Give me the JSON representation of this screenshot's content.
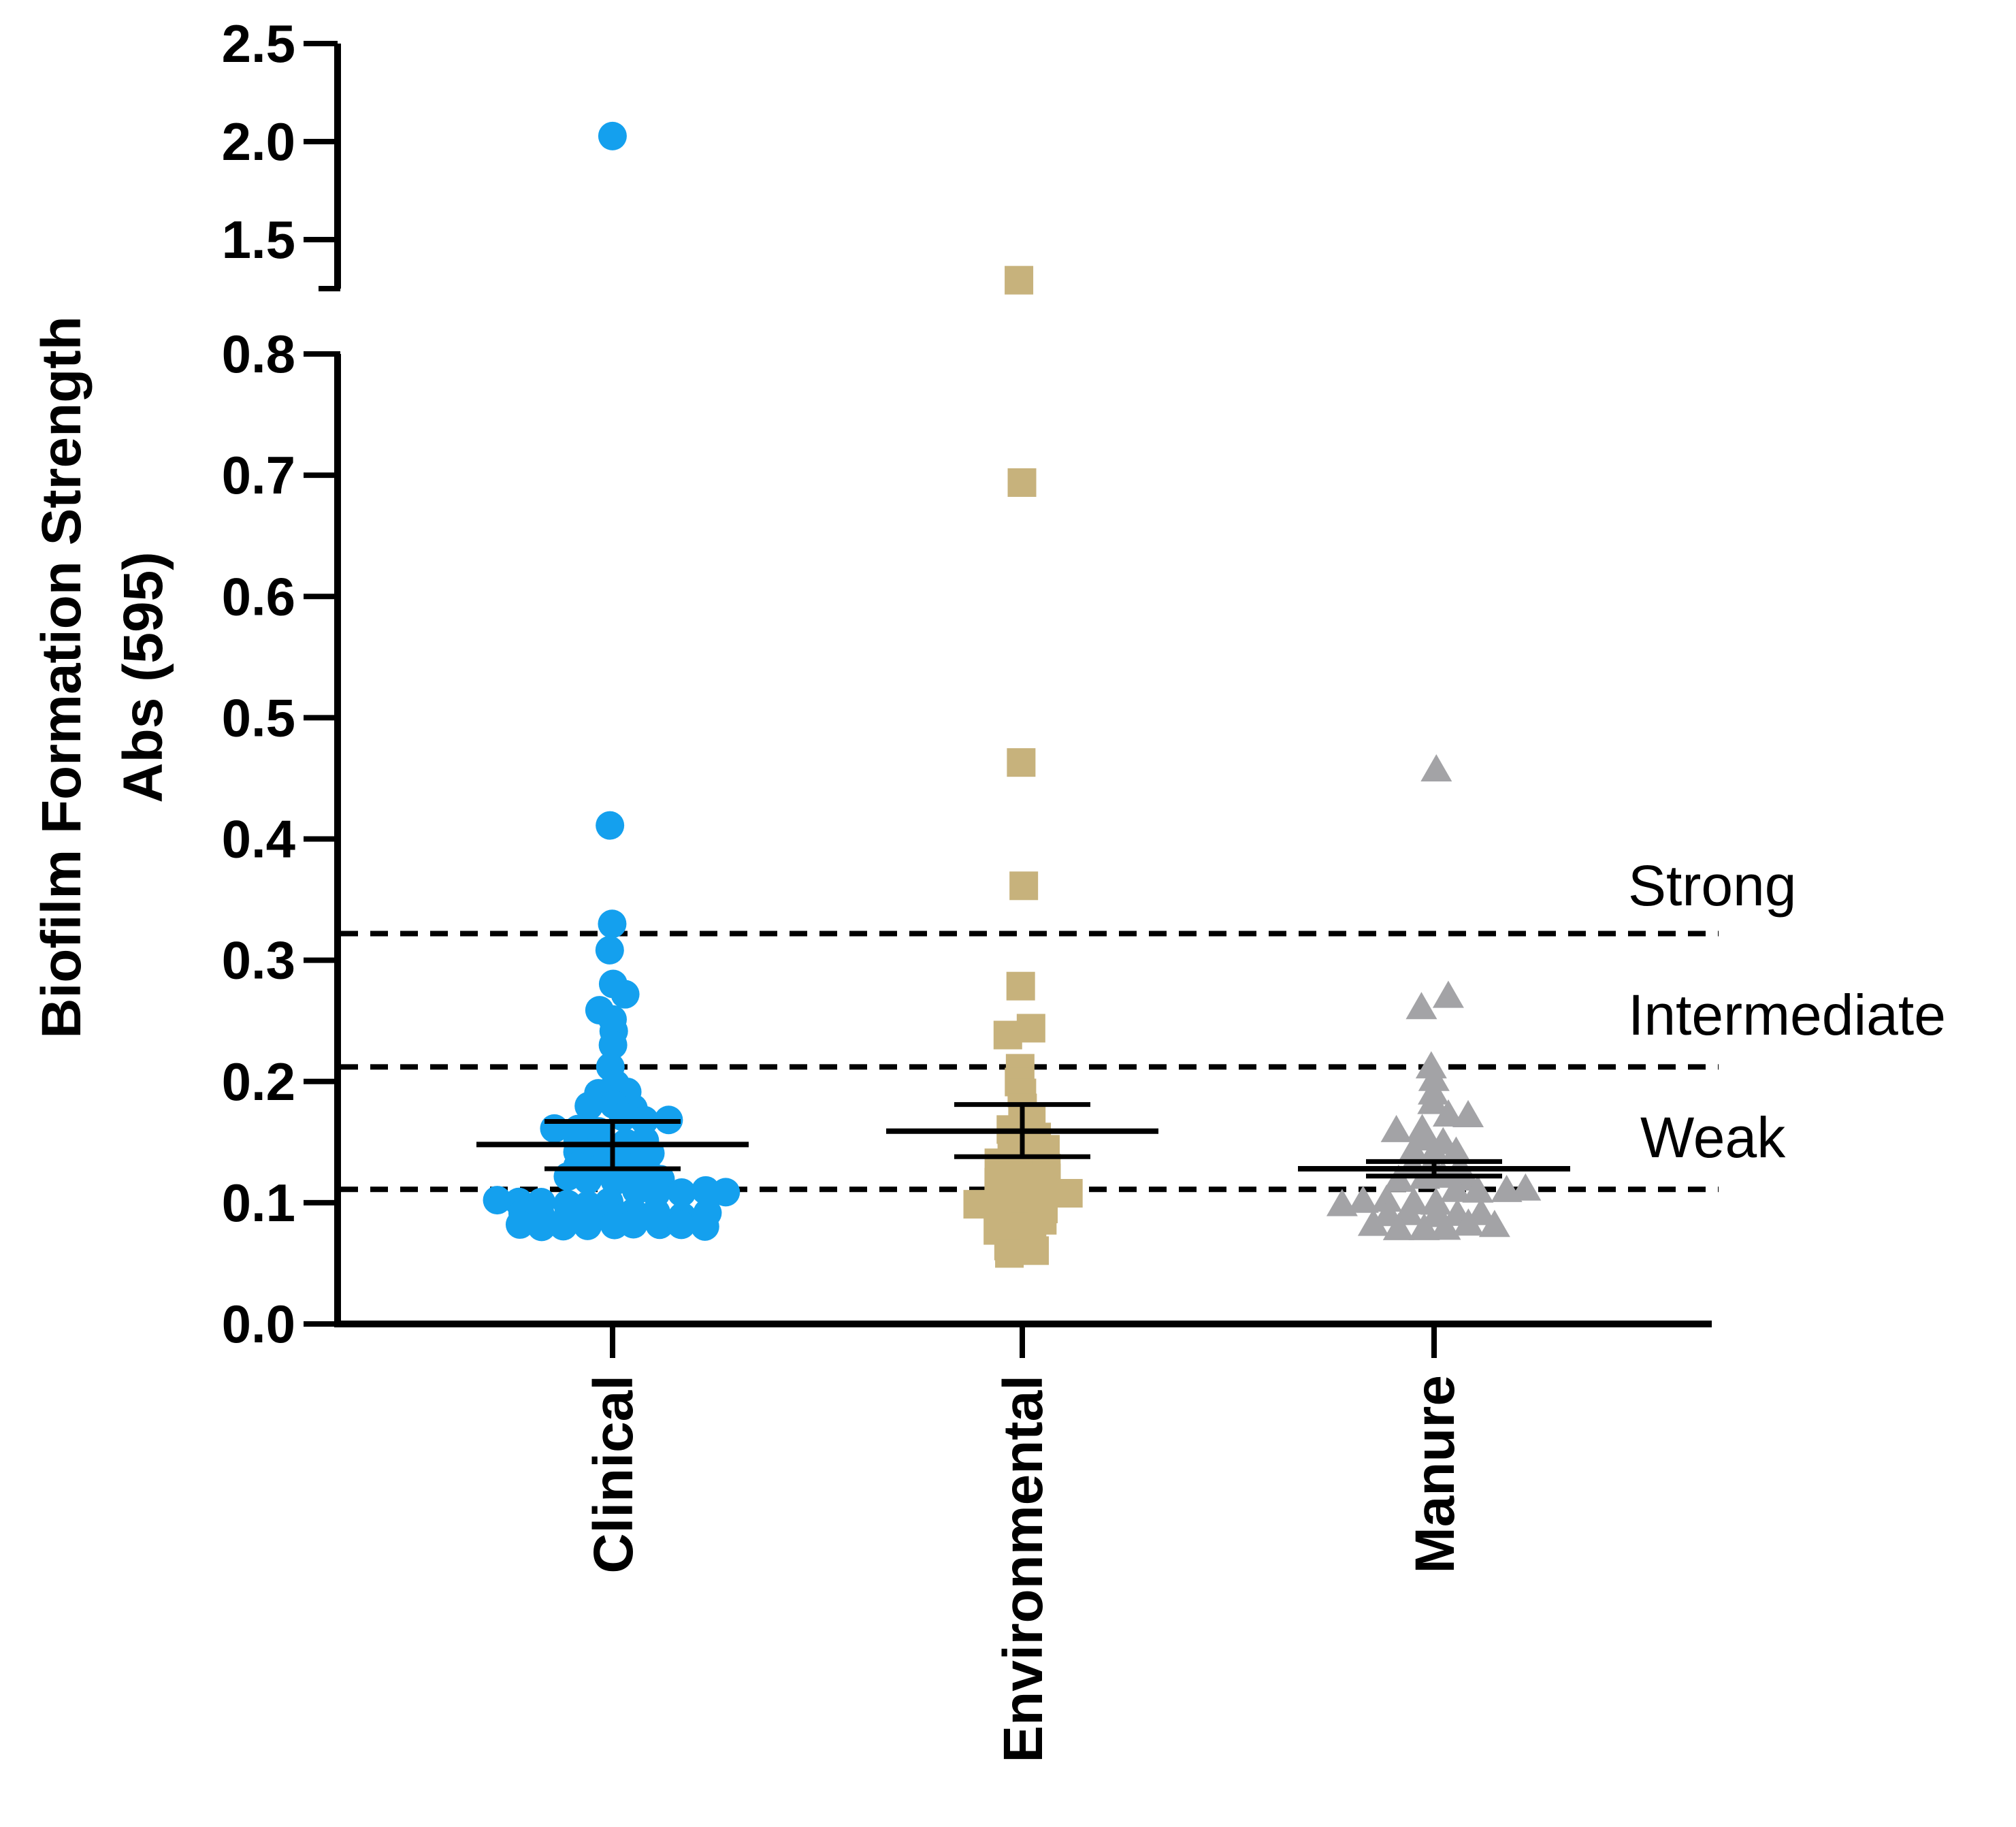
{
  "chart_data": {
    "type": "scatter",
    "subtype": "dot-plot with mean ± SEM, broken y-axis",
    "ylabel_line1": "Biofilm Formation Strength",
    "ylabel_line2": "Abs  (595)",
    "y_axis": {
      "lower_segment": {
        "range": [
          0,
          0.8
        ],
        "ticks": [
          0.0,
          0.1,
          0.2,
          0.3,
          0.4,
          0.5,
          0.6,
          0.7,
          0.8
        ],
        "tick_labels": [
          "0.0",
          "0.1",
          "0.2",
          "0.3",
          "0.4",
          "0.5",
          "0.6",
          "0.7",
          "0.8"
        ]
      },
      "upper_segment": {
        "range": [
          1.25,
          2.5
        ],
        "ticks": [
          1.5,
          2.0,
          2.5
        ],
        "tick_labels": [
          "1.5",
          "2.0",
          "2.5"
        ]
      }
    },
    "categories": [
      "Clinical",
      "Environmental",
      "Manure"
    ],
    "thresholds": [
      {
        "value": 0.111,
        "label": "Weak"
      },
      {
        "value": 0.212,
        "label": "Intermediate"
      },
      {
        "value": 0.322,
        "label": "Strong"
      }
    ],
    "series": [
      {
        "name": "Clinical",
        "marker": "circle",
        "color": "#14A0EE",
        "mean": 0.148,
        "sem_low": 0.128,
        "sem_high": 0.167,
        "values": [
          2.03,
          0.41,
          0.33,
          0.31,
          0.28,
          0.27,
          0.26,
          0.25,
          0.24,
          0.23,
          0.21,
          0.2,
          0.19,
          0.19,
          0.18,
          0.18,
          0.18,
          0.17,
          0.17,
          0.17,
          0.16,
          0.16,
          0.16,
          0.15,
          0.15,
          0.15,
          0.15,
          0.14,
          0.14,
          0.14,
          0.14,
          0.13,
          0.13,
          0.13,
          0.13,
          0.12,
          0.12,
          0.12,
          0.12,
          0.12,
          0.11,
          0.11,
          0.11,
          0.11,
          0.11,
          0.1,
          0.1,
          0.1,
          0.1,
          0.1,
          0.1,
          0.09,
          0.09,
          0.09,
          0.09,
          0.09,
          0.09,
          0.09,
          0.09,
          0.09,
          0.08,
          0.08,
          0.08,
          0.08,
          0.08,
          0.08,
          0.08,
          0.08,
          0.08
        ]
      },
      {
        "name": "Environmental",
        "marker": "square",
        "color": "#C7B27C",
        "mean": 0.159,
        "sem_low": 0.138,
        "sem_high": 0.181,
        "values": [
          1.3,
          0.695,
          0.465,
          0.362,
          0.278,
          0.242,
          0.24,
          0.21,
          0.2,
          0.19,
          0.18,
          0.17,
          0.16,
          0.155,
          0.15,
          0.145,
          0.14,
          0.135,
          0.13,
          0.13,
          0.125,
          0.12,
          0.12,
          0.115,
          0.11,
          0.11,
          0.105,
          0.1,
          0.1,
          0.095,
          0.09,
          0.09,
          0.085,
          0.08,
          0.075,
          0.07,
          0.065,
          0.06,
          0.06
        ]
      },
      {
        "name": "Manure",
        "marker": "triangle",
        "color": "#A3A3A6",
        "mean": 0.128,
        "sem_low": 0.122,
        "sem_high": 0.134,
        "values": [
          0.455,
          0.27,
          0.26,
          0.21,
          0.2,
          0.19,
          0.18,
          0.17,
          0.17,
          0.16,
          0.16,
          0.15,
          0.15,
          0.14,
          0.14,
          0.14,
          0.13,
          0.13,
          0.13,
          0.12,
          0.12,
          0.12,
          0.12,
          0.11,
          0.11,
          0.11,
          0.11,
          0.1,
          0.1,
          0.1,
          0.1,
          0.1,
          0.09,
          0.09,
          0.09,
          0.09,
          0.09,
          0.08,
          0.08,
          0.08,
          0.08,
          0.08,
          0.08
        ]
      }
    ]
  }
}
